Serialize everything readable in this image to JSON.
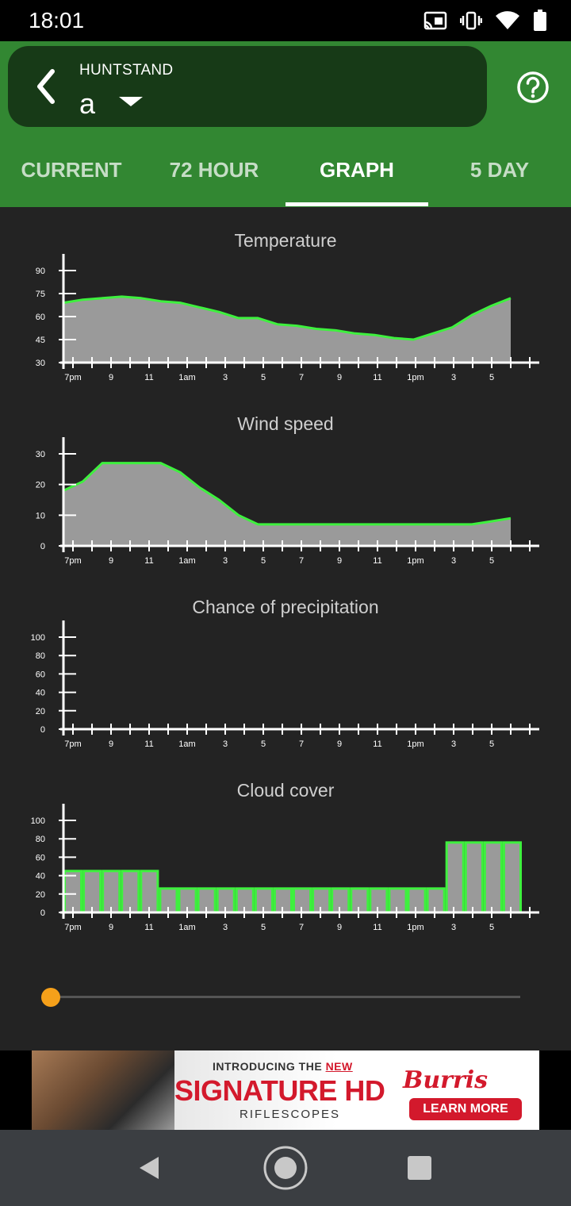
{
  "status_bar": {
    "time": "18:01",
    "icons": [
      "cast-icon",
      "vibrate-icon",
      "wifi-icon",
      "battery-icon"
    ]
  },
  "header": {
    "location_label": "HUNTSTAND",
    "location_value": "a",
    "colors": {
      "bar": "#328732",
      "pill": "#173a17"
    }
  },
  "tabs": [
    {
      "label": "CURRENT",
      "active": false
    },
    {
      "label": "72 HOUR",
      "active": false
    },
    {
      "label": "GRAPH",
      "active": true
    },
    {
      "label": "5 DAY",
      "active": false
    }
  ],
  "chart_data": [
    {
      "type": "area",
      "title": "Temperature",
      "y_ticks": [
        30,
        45,
        60,
        75,
        90
      ],
      "ylim": [
        30,
        90
      ],
      "x_tick_labels": [
        "7pm",
        "9",
        "11",
        "1am",
        "3",
        "5",
        "7",
        "9",
        "11",
        "1pm",
        "3",
        "5"
      ],
      "values": [
        69,
        71,
        72,
        73,
        72,
        70,
        69,
        66,
        63,
        59,
        59,
        55,
        54,
        52,
        51,
        49,
        48,
        46,
        45,
        49,
        53,
        61,
        67,
        72
      ],
      "line_color": "#3ef03e",
      "fill_color": "#9a9a9a"
    },
    {
      "type": "area",
      "title": "Wind speed",
      "y_ticks": [
        0,
        10,
        20,
        30
      ],
      "ylim": [
        0,
        30
      ],
      "x_tick_labels": [
        "7pm",
        "9",
        "11",
        "1am",
        "3",
        "5",
        "7",
        "9",
        "11",
        "1pm",
        "3",
        "5"
      ],
      "values": [
        18,
        21,
        27,
        27,
        27,
        27,
        24,
        19,
        15,
        10,
        7,
        7,
        7,
        7,
        7,
        7,
        7,
        7,
        7,
        7,
        7,
        7,
        8,
        9
      ],
      "line_color": "#3ef03e",
      "fill_color": "#9a9a9a"
    },
    {
      "type": "area",
      "title": "Chance of precipitation",
      "y_ticks": [
        0,
        20,
        40,
        60,
        80,
        100
      ],
      "ylim": [
        0,
        100
      ],
      "x_tick_labels": [
        "7pm",
        "9",
        "11",
        "1am",
        "3",
        "5",
        "7",
        "9",
        "11",
        "1pm",
        "3",
        "5"
      ],
      "values": [
        0,
        0,
        0,
        0,
        0,
        0,
        0,
        0,
        0,
        0,
        0,
        0,
        0,
        0,
        0,
        0,
        0,
        0,
        0,
        0,
        0,
        0,
        0,
        0
      ],
      "line_color": "#3ef03e",
      "fill_color": "#9a9a9a"
    },
    {
      "type": "bar",
      "title": "Cloud cover",
      "y_ticks": [
        0,
        20,
        40,
        60,
        80,
        100
      ],
      "ylim": [
        0,
        100
      ],
      "x_tick_labels": [
        "7pm",
        "9",
        "11",
        "1am",
        "3",
        "5",
        "7",
        "9",
        "11",
        "1pm",
        "3",
        "5"
      ],
      "values": [
        45,
        45,
        45,
        45,
        45,
        26,
        26,
        26,
        26,
        26,
        26,
        26,
        26,
        26,
        26,
        26,
        26,
        26,
        26,
        26,
        76,
        76,
        76,
        76
      ],
      "line_color": "#3ef03e",
      "fill_color": "#9a9a9a"
    }
  ],
  "slider": {
    "value": 0,
    "accent": "#f5a01a"
  },
  "ad": {
    "line1_prefix": "INTRODUCING THE ",
    "line1_new": "NEW",
    "headline": "SIGNATURE HD",
    "subline": "RIFLESCOPES",
    "brand": "Burris",
    "cta": "LEARN MORE"
  }
}
